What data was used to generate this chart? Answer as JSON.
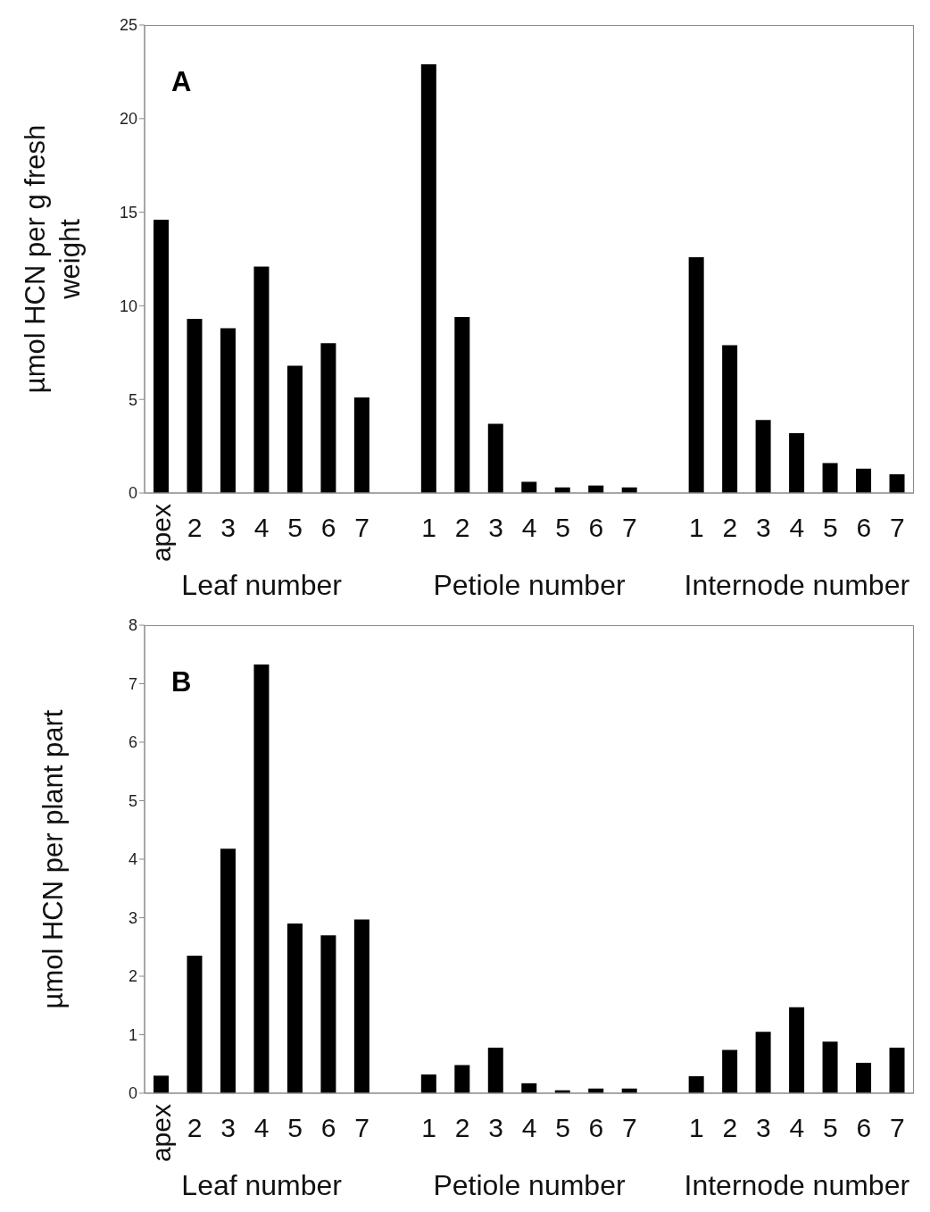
{
  "chart_data": [
    {
      "type": "bar",
      "title": "A",
      "ylabel": "µmol HCN per g fresh weight",
      "categories": [
        "apex",
        "2",
        "3",
        "4",
        "5",
        "6",
        "7",
        null,
        "1",
        "2",
        "3",
        "4",
        "5",
        "6",
        "7",
        null,
        "1",
        "2",
        "3",
        "4",
        "5",
        "6",
        "7"
      ],
      "values": [
        14.6,
        9.3,
        8.8,
        12.1,
        6.8,
        8.0,
        5.1,
        null,
        22.9,
        9.4,
        3.7,
        0.6,
        0.3,
        0.4,
        0.3,
        null,
        12.6,
        7.9,
        3.9,
        3.2,
        1.6,
        1.3,
        1.0
      ],
      "color": "#000000",
      "ylim": [
        0,
        25
      ],
      "yticks": [
        0,
        5,
        10,
        15,
        20,
        25
      ],
      "annotations": [
        "Leaf number",
        "Petiole number",
        "Internode number"
      ]
    },
    {
      "type": "bar",
      "title": "B",
      "ylabel": "µmol HCN per plant part",
      "categories": [
        "apex",
        "2",
        "3",
        "4",
        "5",
        "6",
        "7",
        null,
        "1",
        "2",
        "3",
        "4",
        "5",
        "6",
        "7",
        null,
        "1",
        "2",
        "3",
        "4",
        "5",
        "6",
        "7"
      ],
      "values": [
        0.3,
        2.35,
        4.18,
        7.33,
        2.9,
        2.7,
        2.97,
        null,
        0.32,
        0.48,
        0.78,
        0.17,
        0.05,
        0.08,
        0.08,
        null,
        0.29,
        0.74,
        1.05,
        1.47,
        0.88,
        0.52,
        0.78
      ],
      "color": "#000000",
      "ylim": [
        0,
        8
      ],
      "yticks": [
        0,
        1,
        2,
        3,
        4,
        5,
        6,
        7,
        8
      ],
      "annotations": [
        "Leaf number",
        "Petiole number",
        "Internode number"
      ]
    }
  ]
}
